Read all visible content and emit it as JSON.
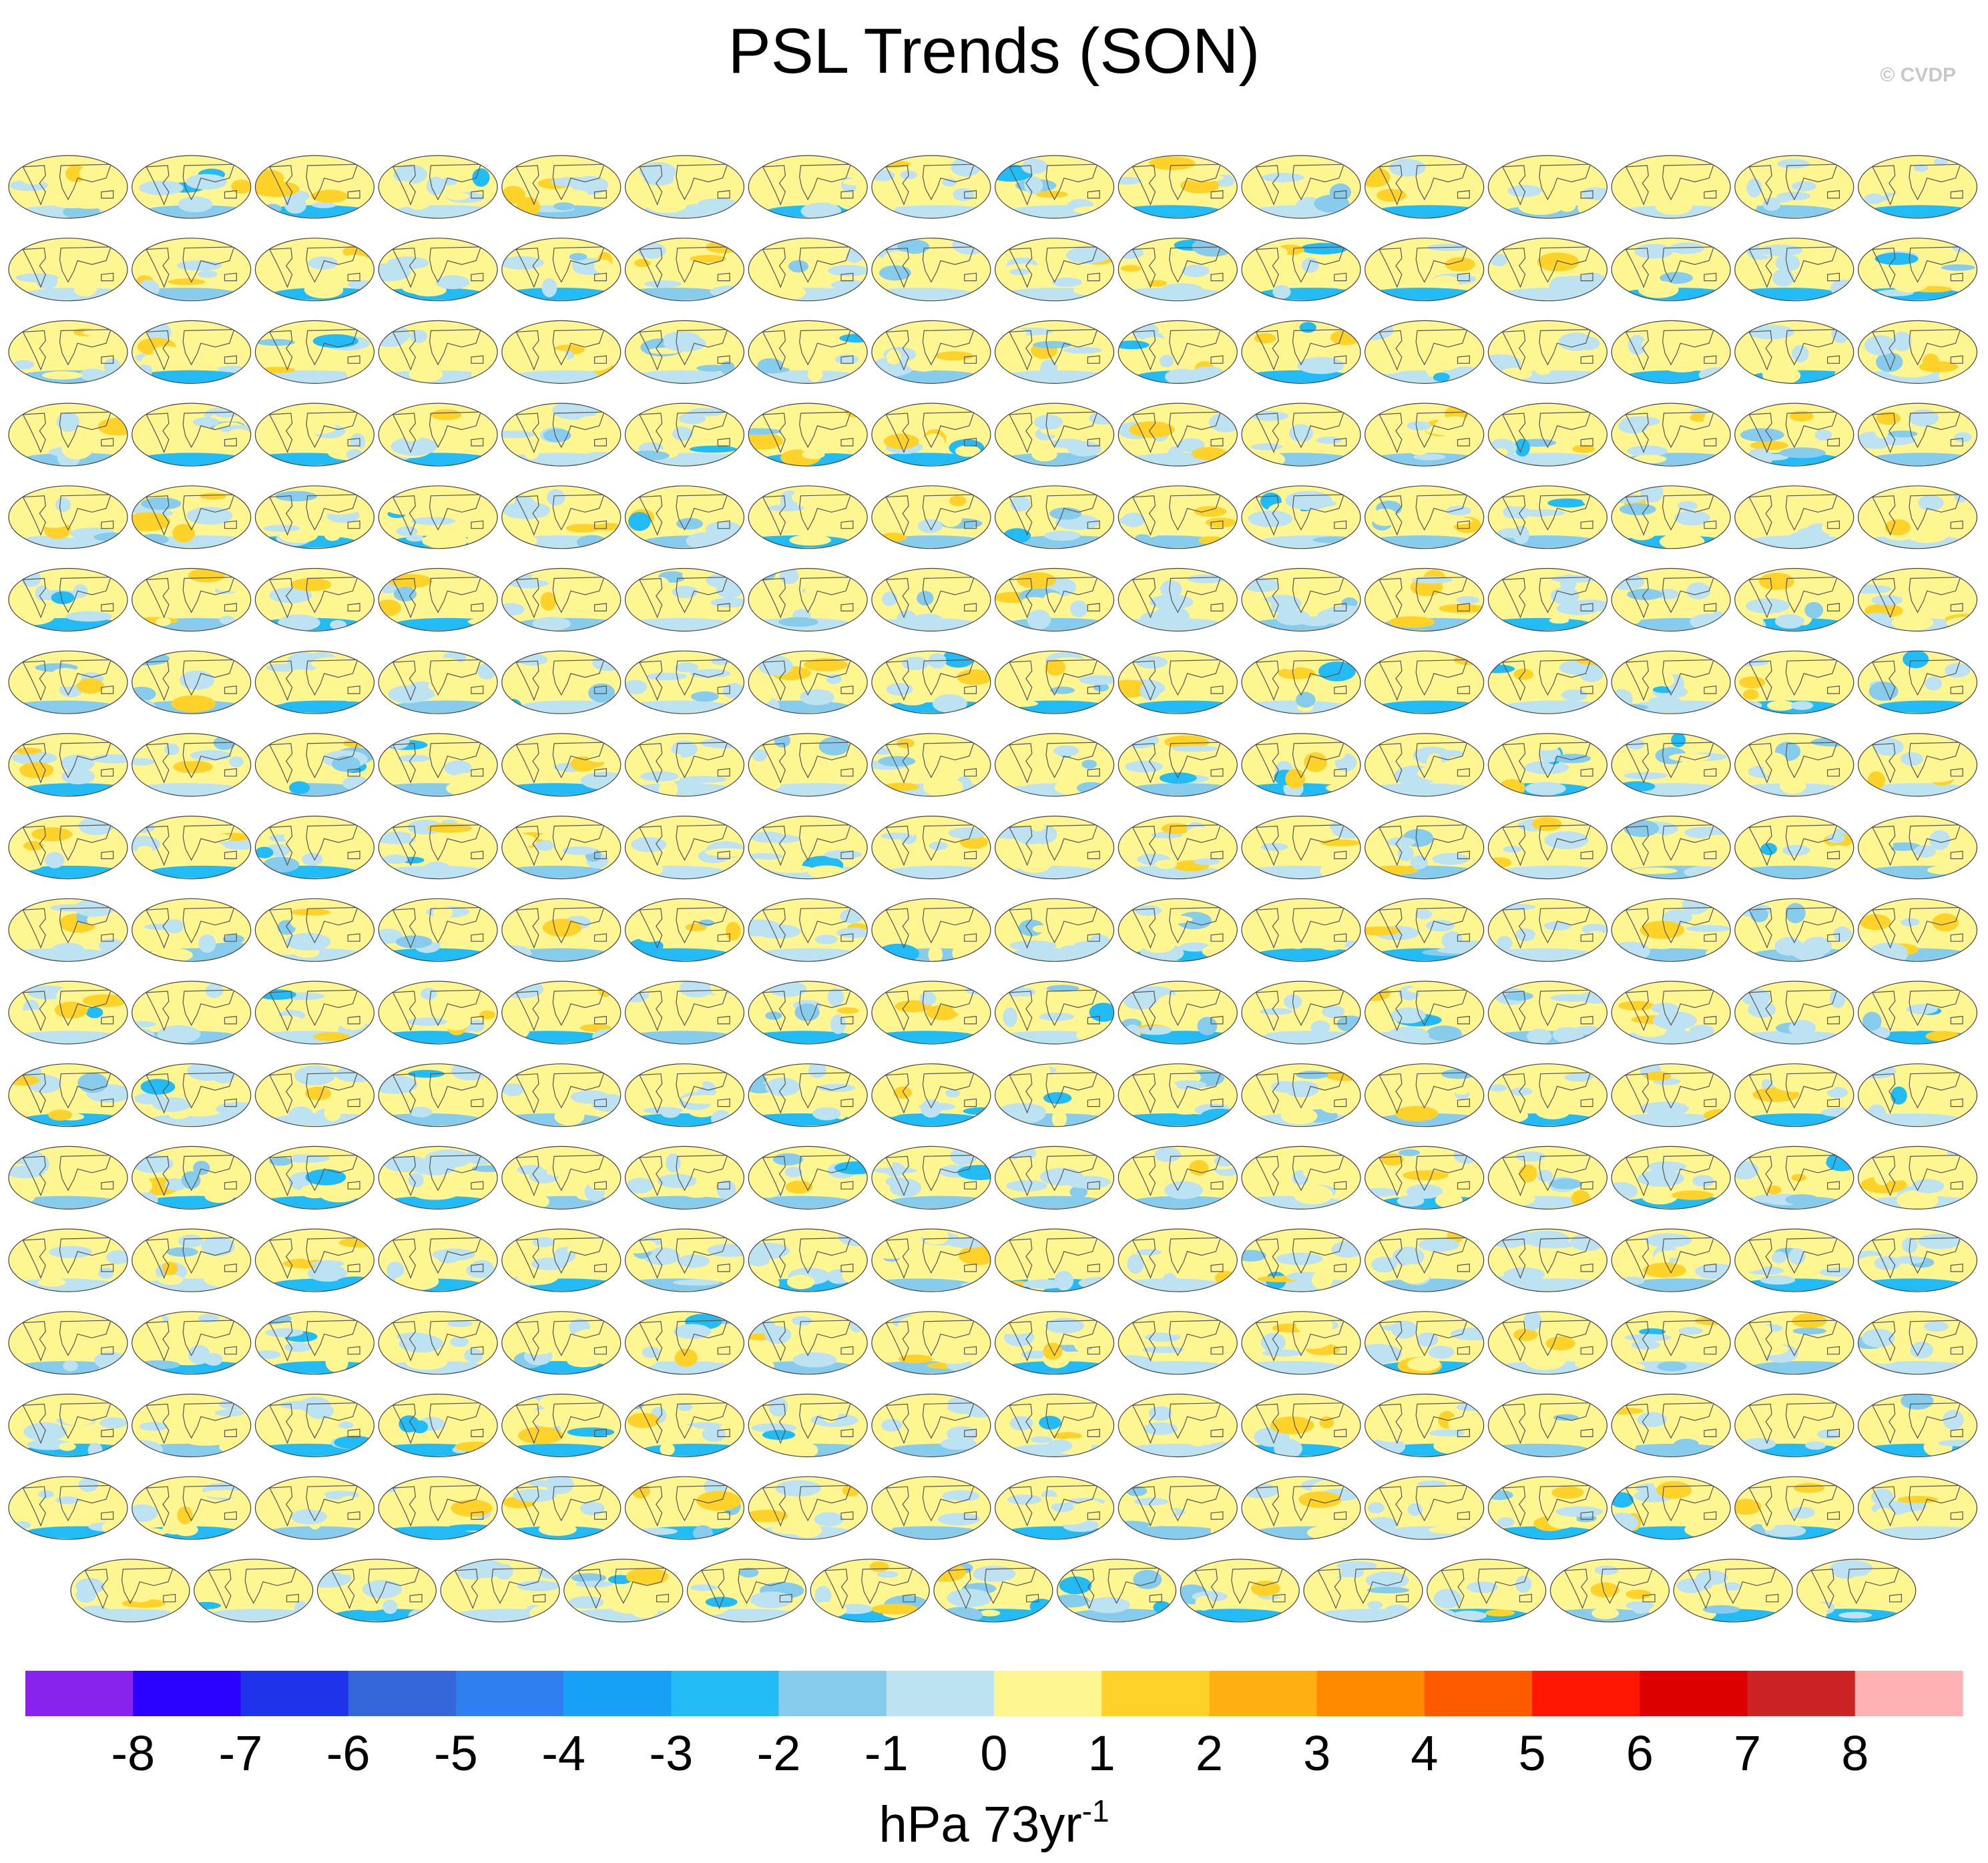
{
  "title": "PSL Trends (SON)",
  "watermark": "© CVDP",
  "units": {
    "base": "hPa 73yr",
    "exponent": "-1"
  },
  "chart_data": {
    "type": "heatmap",
    "title": "PSL Trends (SON)",
    "panel_layout": {
      "rows_full": 17,
      "columns": 16,
      "last_row_panels": 15,
      "map_projection": "global ellipse"
    },
    "colorbar": {
      "labels": [
        "-8",
        "-7",
        "-6",
        "-5",
        "-4",
        "-3",
        "-2",
        "-1",
        "0",
        "1",
        "2",
        "3",
        "4",
        "5",
        "6",
        "7",
        "8"
      ],
      "levels": [
        -8,
        -7,
        -6,
        -5,
        -4,
        -3,
        -2,
        -1,
        0,
        1,
        2,
        3,
        4,
        5,
        6,
        7,
        8
      ],
      "colors": [
        "#8a22ee",
        "#2a00ff",
        "#1f34ea",
        "#3566d9",
        "#2f7ff0",
        "#17a0f5",
        "#22bbf5",
        "#87ccec",
        "#bde2f2",
        "#fff591",
        "#ffd22a",
        "#ffb00f",
        "#ff8a00",
        "#ff5a00",
        "#ff1500",
        "#dd0000",
        "#cc2424",
        "#ffb2b2"
      ],
      "orientation": "horizontal",
      "placement": "bottom",
      "units": "hPa 73yr^-1"
    }
  }
}
